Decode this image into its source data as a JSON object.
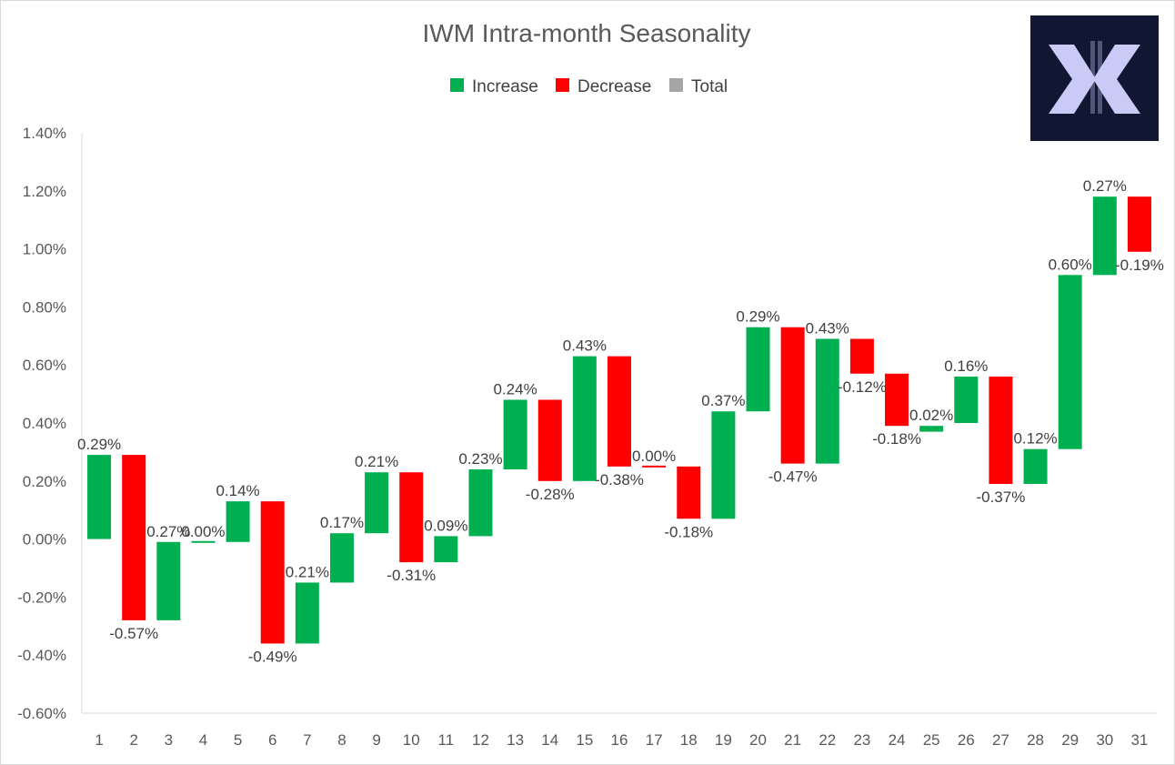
{
  "colors": {
    "increase": "#00B050",
    "decrease": "#FF0000",
    "total": "#A5A5A5",
    "axis": "#D9D9D9",
    "text": "#595959",
    "logo_bg": "#111633",
    "logo_mark": "#C9CAF5"
  },
  "logo": {
    "icon": "double-chevron-x-logo"
  },
  "chart_data": {
    "type": "waterfall",
    "title": "IWM Intra-month Seasonality",
    "legend": [
      {
        "label": "Increase",
        "color": "#00B050"
      },
      {
        "label": "Decrease",
        "color": "#FF0000"
      },
      {
        "label": "Total",
        "color": "#A5A5A5"
      }
    ],
    "legend_position": "top",
    "ylim": [
      -0.6,
      1.4
    ],
    "ytick_step": 0.2,
    "ytick_labels": [
      "1.40%",
      "1.20%",
      "1.00%",
      "0.80%",
      "0.60%",
      "0.40%",
      "0.20%",
      "0.00%",
      "-0.20%",
      "-0.40%",
      "-0.60%"
    ],
    "categories": [
      "1",
      "2",
      "3",
      "4",
      "5",
      "6",
      "7",
      "8",
      "9",
      "10",
      "11",
      "12",
      "13",
      "14",
      "15",
      "16",
      "17",
      "18",
      "19",
      "20",
      "21",
      "22",
      "23",
      "24",
      "25",
      "26",
      "27",
      "28",
      "29",
      "30",
      "31"
    ],
    "bars": [
      {
        "start": 0.0,
        "end": 0.29,
        "label": "0.29%"
      },
      {
        "start": 0.29,
        "end": -0.28,
        "label": "-0.57%"
      },
      {
        "start": -0.28,
        "end": -0.01,
        "label": "0.27%"
      },
      {
        "start": -0.01,
        "end": -0.01,
        "label": "0.00%"
      },
      {
        "start": -0.01,
        "end": 0.13,
        "label": "0.14%"
      },
      {
        "start": 0.13,
        "end": -0.36,
        "label": "-0.49%"
      },
      {
        "start": -0.36,
        "end": -0.15,
        "label": "0.21%"
      },
      {
        "start": -0.15,
        "end": 0.02,
        "label": "0.17%"
      },
      {
        "start": 0.02,
        "end": 0.23,
        "label": "0.21%"
      },
      {
        "start": 0.23,
        "end": -0.08,
        "label": "-0.31%"
      },
      {
        "start": -0.08,
        "end": 0.01,
        "label": "0.09%"
      },
      {
        "start": 0.01,
        "end": 0.24,
        "label": "0.23%"
      },
      {
        "start": 0.24,
        "end": 0.48,
        "label": "0.24%"
      },
      {
        "start": 0.48,
        "end": 0.2,
        "label": "-0.28%"
      },
      {
        "start": 0.2,
        "end": 0.63,
        "label": "0.43%"
      },
      {
        "start": 0.63,
        "end": 0.25,
        "label": "-0.38%"
      },
      {
        "start": 0.25,
        "end": 0.25,
        "label": "0.00%"
      },
      {
        "start": 0.25,
        "end": 0.07,
        "label": "-0.18%"
      },
      {
        "start": 0.07,
        "end": 0.44,
        "label": "0.37%"
      },
      {
        "start": 0.44,
        "end": 0.73,
        "label": "0.29%"
      },
      {
        "start": 0.73,
        "end": 0.26,
        "label": "-0.47%"
      },
      {
        "start": 0.26,
        "end": 0.69,
        "label": "0.43%"
      },
      {
        "start": 0.69,
        "end": 0.57,
        "label": "-0.12%"
      },
      {
        "start": 0.57,
        "end": 0.39,
        "label": "-0.18%"
      },
      {
        "start": 0.37,
        "end": 0.39,
        "label": "0.02%"
      },
      {
        "start": 0.4,
        "end": 0.56,
        "label": "0.16%"
      },
      {
        "start": 0.56,
        "end": 0.19,
        "label": "-0.37%"
      },
      {
        "start": 0.19,
        "end": 0.31,
        "label": "0.12%"
      },
      {
        "start": 0.31,
        "end": 0.91,
        "label": "0.60%"
      },
      {
        "start": 0.91,
        "end": 1.18,
        "label": "0.27%"
      },
      {
        "start": 1.18,
        "end": 0.99,
        "label": "-0.19%"
      }
    ]
  }
}
